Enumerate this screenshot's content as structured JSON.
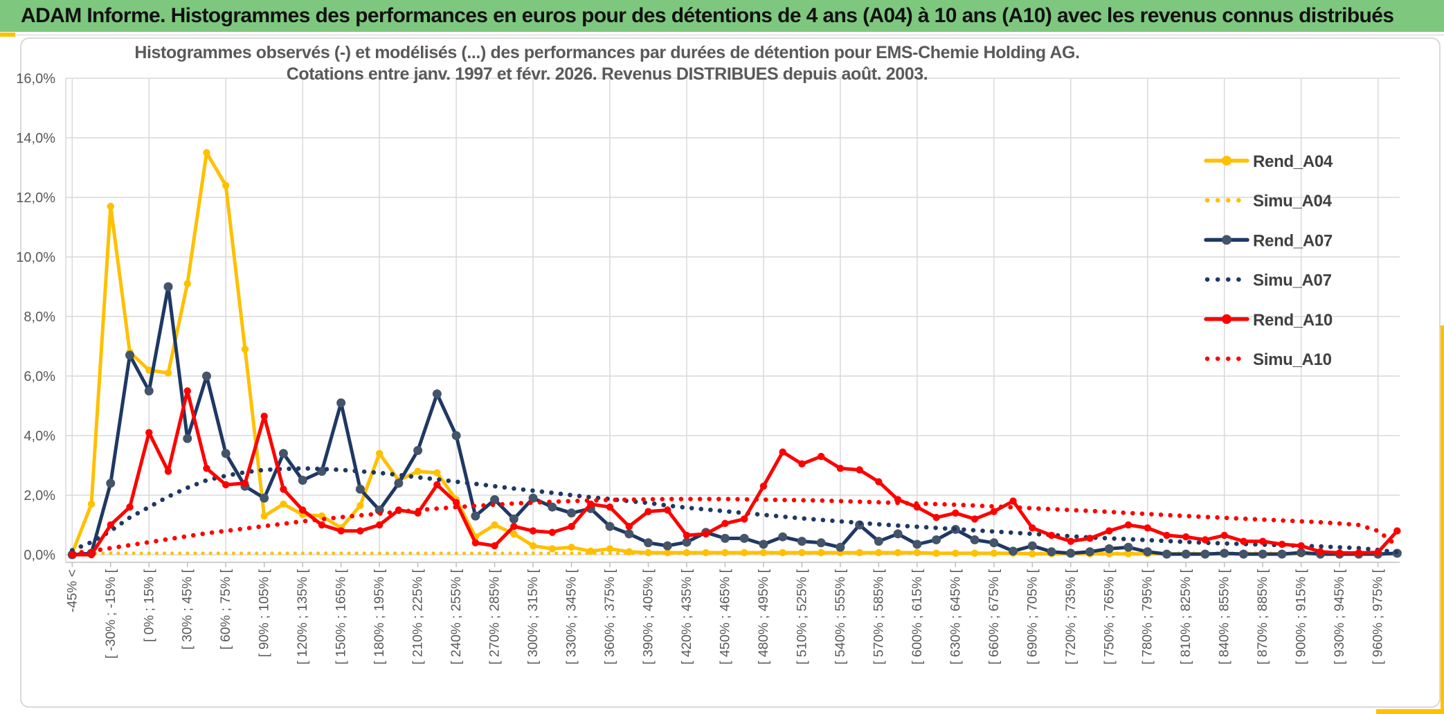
{
  "header": {
    "title": "ADAM Informe. Histogrammes des performances en euros pour des détentions de 4 ans (A04) à 10 ans (A10) avec les revenus connus distribués"
  },
  "chart": {
    "title_line1": "Histogrammes observés (-) et modélisés (...) des performances par durées de détention pour EMS-Chemie Holding AG.",
    "title_line2": "Cotations entre janv. 1997 et févr. 2026. Revenus DISTRIBUES depuis août. 2003.",
    "y_ticks": [
      "16,0%",
      "14,0%",
      "12,0%",
      "10,0%",
      "8,0%",
      "6,0%",
      "4,0%",
      "2,0%",
      "0,0%"
    ],
    "colors": {
      "gold": "#FFC000",
      "navy": "#1F3864",
      "navy_marker": "#44546A",
      "red": "#FF0000",
      "grid": "#D9D9D9",
      "axis": "#BFBFBF",
      "axis_text": "#595959",
      "legend_text": "#404040",
      "header_green": "#7EC77E"
    }
  },
  "chart_data": {
    "type": "line",
    "title": "Histogrammes observés (-) et modélisés (...) des performances par durées de détention pour EMS-Chemie Holding AG. Cotations entre janv. 1997 et févr. 2026. Revenus DISTRIBUES depuis août. 2003.",
    "ylabel": "",
    "xlabel": "",
    "ylim": [
      0,
      16
    ],
    "y_tick_step": 2,
    "grid": true,
    "legend_position": "right",
    "n_bins": 70,
    "label_every_n_bins": 2,
    "x_labels": [
      "-45% <",
      "[ -30% ; -15% [",
      "[ 0% ; 15% [",
      "[ 30% ; 45% [",
      "[ 60% ; 75% [",
      "[ 90% ; 105% [",
      "[ 120% ; 135% [",
      "[ 150% ; 165% [",
      "[ 180% ; 195% [",
      "[ 210% ; 225% [",
      "[ 240% ; 255% [",
      "[ 270% ; 285% [",
      "[ 300% ; 315% [",
      "[ 330% ; 345% [",
      "[ 360% ; 375% [",
      "[ 390% ; 405% [",
      "[ 420% ; 435% [",
      "[ 450% ; 465% [",
      "[ 480% ; 495% [",
      "[ 510% ; 525% [",
      "[ 540% ; 555% [",
      "[ 570% ; 585% [",
      "[ 600% ; 615% [",
      "[ 630% ; 645% [",
      "[ 660% ; 675% [",
      "[ 690% ; 705% [",
      "[ 720% ; 735% [",
      "[ 750% ; 765% [",
      "[ 780% ; 795% [",
      "[ 810% ; 825% [",
      "[ 840% ; 855% [",
      "[ 870% ; 885% [",
      "[ 900% ; 915% [",
      "[ 930% ; 945% [",
      "[ 960% ; 975% ["
    ],
    "series": [
      {
        "name": "Rend_A04",
        "style": "solid",
        "color": "#FFC000",
        "marker_color": "#FFC000",
        "values": [
          0.05,
          1.7,
          11.7,
          6.8,
          6.2,
          6.1,
          9.1,
          13.5,
          12.4,
          6.9,
          1.3,
          1.7,
          1.35,
          1.3,
          0.9,
          1.65,
          3.4,
          2.5,
          2.8,
          2.75,
          1.85,
          0.6,
          1.0,
          0.7,
          0.3,
          0.2,
          0.25,
          0.12,
          0.2,
          0.1,
          0.07,
          0.07,
          0.07,
          0.07,
          0.07,
          0.07,
          0.07,
          0.07,
          0.07,
          0.07,
          0.07,
          0.07,
          0.07,
          0.07,
          0.07,
          0.05,
          0.05,
          0.05,
          0.05,
          0.05,
          0.03,
          0.03,
          0.03,
          0.03,
          0.03,
          0.03,
          0.03,
          0.03,
          0.03,
          0.03,
          0.03,
          0.03,
          0.03,
          0.03,
          0.03,
          0.03,
          0.03,
          0.03,
          0.03,
          0.03
        ]
      },
      {
        "name": "Simu_A04",
        "style": "dotted",
        "color": "#FFC000",
        "values": [
          0.05,
          0.05,
          0.05,
          0.05,
          0.05,
          0.05,
          0.05,
          0.05,
          0.05,
          0.05,
          0.05,
          0.05,
          0.05,
          0.05,
          0.05,
          0.05,
          0.05,
          0.05,
          0.05,
          0.05,
          0.05,
          0.05,
          0.05,
          0.05,
          0.05,
          0.05,
          0.05,
          0.05,
          0.05,
          0.05,
          0.05,
          0.05,
          0.05,
          0.05,
          0.05,
          0.05,
          0.05,
          0.05,
          0.05,
          0.05,
          0.05,
          0.05,
          0.05,
          0.05,
          0.05,
          0.05,
          0.05,
          0.05,
          0.05,
          0.05,
          0.05,
          0.05,
          0.05,
          0.05,
          0.05,
          0.05,
          0.05,
          0.05,
          0.05,
          0.05,
          0.05,
          0.05,
          0.05,
          0.05,
          0.05,
          0.05,
          0.05,
          0.05,
          0.05,
          0.05
        ]
      },
      {
        "name": "Rend_A07",
        "style": "solid",
        "color": "#1F3864",
        "marker_color": "#44546A",
        "values": [
          0.0,
          0.05,
          2.4,
          6.7,
          5.5,
          9.0,
          3.9,
          6.0,
          3.4,
          2.3,
          1.9,
          3.4,
          2.5,
          2.8,
          5.1,
          2.2,
          1.5,
          2.4,
          3.5,
          5.4,
          4.0,
          1.3,
          1.85,
          1.2,
          1.9,
          1.6,
          1.4,
          1.55,
          0.95,
          0.7,
          0.4,
          0.3,
          0.42,
          0.75,
          0.55,
          0.55,
          0.35,
          0.6,
          0.45,
          0.4,
          0.25,
          1.0,
          0.45,
          0.7,
          0.35,
          0.5,
          0.85,
          0.5,
          0.4,
          0.12,
          0.3,
          0.1,
          0.05,
          0.1,
          0.2,
          0.25,
          0.1,
          0.02,
          0.02,
          0.02,
          0.05,
          0.02,
          0.02,
          0.02,
          0.07,
          0.02,
          0.02,
          0.02,
          0.02,
          0.05
        ]
      },
      {
        "name": "Simu_A07",
        "style": "dotted",
        "color": "#1F3864",
        "values": [
          0.15,
          0.42,
          0.8,
          1.25,
          1.6,
          1.95,
          2.25,
          2.5,
          2.65,
          2.77,
          2.85,
          2.88,
          2.9,
          2.88,
          2.85,
          2.8,
          2.75,
          2.68,
          2.6,
          2.53,
          2.45,
          2.38,
          2.3,
          2.22,
          2.15,
          2.08,
          2.0,
          1.93,
          1.87,
          1.8,
          1.74,
          1.65,
          1.58,
          1.52,
          1.46,
          1.4,
          1.34,
          1.28,
          1.22,
          1.17,
          1.12,
          1.07,
          1.02,
          0.98,
          0.94,
          0.9,
          0.86,
          0.82,
          0.78,
          0.74,
          0.7,
          0.66,
          0.62,
          0.58,
          0.55,
          0.52,
          0.49,
          0.46,
          0.43,
          0.4,
          0.38,
          0.36,
          0.34,
          0.32,
          0.3,
          0.28,
          0.25,
          0.22,
          0.16,
          0.08
        ]
      },
      {
        "name": "Rend_A10",
        "style": "solid",
        "color": "#FF0000",
        "marker_color": "#FF0000",
        "values": [
          0.0,
          0.0,
          1.0,
          1.6,
          4.1,
          2.8,
          5.5,
          2.9,
          2.35,
          2.4,
          4.65,
          2.2,
          1.5,
          1.0,
          0.8,
          0.8,
          1.0,
          1.5,
          1.4,
          2.35,
          1.75,
          0.4,
          0.3,
          0.95,
          0.8,
          0.75,
          0.95,
          1.7,
          1.6,
          0.95,
          1.45,
          1.5,
          0.65,
          0.7,
          1.05,
          1.2,
          2.3,
          3.45,
          3.05,
          3.3,
          2.9,
          2.85,
          2.45,
          1.85,
          1.6,
          1.25,
          1.4,
          1.2,
          1.45,
          1.8,
          0.9,
          0.65,
          0.45,
          0.55,
          0.8,
          1.0,
          0.9,
          0.65,
          0.6,
          0.5,
          0.65,
          0.45,
          0.45,
          0.35,
          0.3,
          0.1,
          0.06,
          0.06,
          0.08,
          0.8
        ]
      },
      {
        "name": "Simu_A10",
        "style": "dotted",
        "color": "#FF0000",
        "values": [
          0.05,
          0.12,
          0.22,
          0.32,
          0.42,
          0.52,
          0.62,
          0.72,
          0.8,
          0.88,
          0.96,
          1.04,
          1.12,
          1.19,
          1.26,
          1.32,
          1.38,
          1.44,
          1.5,
          1.55,
          1.6,
          1.64,
          1.68,
          1.72,
          1.75,
          1.78,
          1.8,
          1.82,
          1.84,
          1.85,
          1.86,
          1.87,
          1.87,
          1.87,
          1.87,
          1.86,
          1.85,
          1.84,
          1.83,
          1.82,
          1.8,
          1.78,
          1.76,
          1.74,
          1.72,
          1.7,
          1.68,
          1.65,
          1.62,
          1.59,
          1.56,
          1.53,
          1.5,
          1.47,
          1.44,
          1.4,
          1.37,
          1.33,
          1.3,
          1.27,
          1.24,
          1.21,
          1.18,
          1.15,
          1.12,
          1.09,
          1.05,
          1.0,
          0.8,
          0.3
        ]
      }
    ]
  }
}
